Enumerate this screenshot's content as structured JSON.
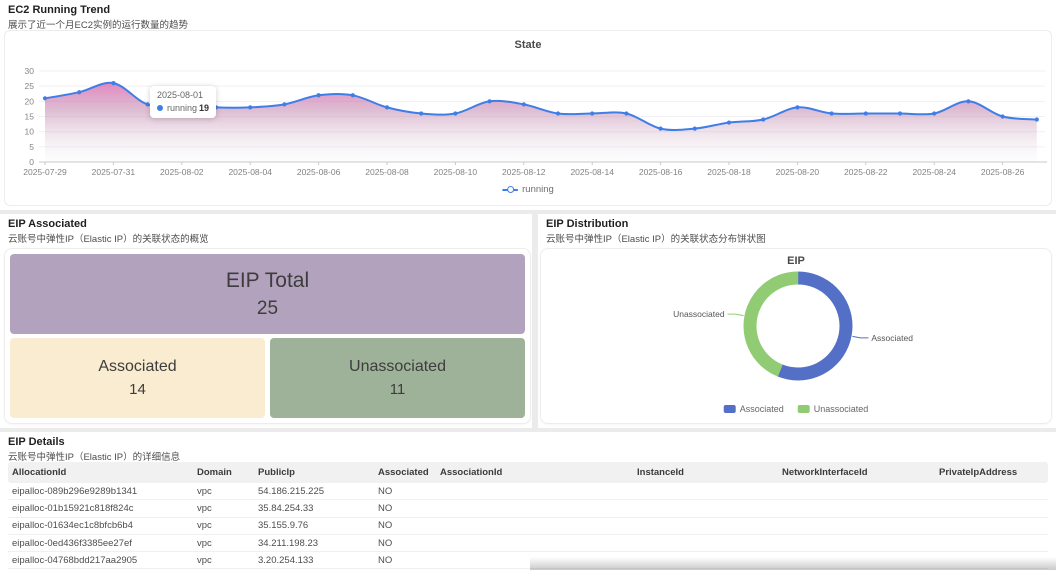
{
  "ec2_section": {
    "title": "EC2 Running Trend",
    "subtitle": "展示了近一个月EC2实例的运行数量的趋势",
    "chart_title": "State",
    "legend": "running",
    "tooltip": {
      "date": "2025-08-01",
      "series": "running",
      "value": "19"
    }
  },
  "eip_associated": {
    "title": "EIP Associated",
    "subtitle": "云账号中弹性IP（Elastic IP）的关联状态的概览",
    "cards": [
      {
        "label": "EIP Total",
        "value": "25",
        "bg": "#b2a2bd"
      },
      {
        "label": "Associated",
        "value": "14",
        "bg": "#faecd0"
      },
      {
        "label": "Unassociated",
        "value": "11",
        "bg": "#9db298"
      }
    ]
  },
  "eip_distribution": {
    "title": "EIP Distribution",
    "subtitle": "云账号中弹性IP（Elastic IP）的关联状态分布饼状图",
    "chart_title": "EIP"
  },
  "eip_details": {
    "title": "EIP Details",
    "subtitle": "云账号中弹性IP（Elastic IP）的详细信息",
    "columns": [
      "AllocationId",
      "Domain",
      "PublicIp",
      "Associated",
      "AssociationId",
      "InstanceId",
      "NetworkInterfaceId",
      "PrivateIpAddress"
    ],
    "rows": [
      [
        "eipalloc-089b296e9289b1341",
        "vpc",
        "54.186.215.225",
        "NO",
        "",
        "",
        "",
        ""
      ],
      [
        "eipalloc-01b15921c818f824c",
        "vpc",
        "35.84.254.33",
        "NO",
        "",
        "",
        "",
        ""
      ],
      [
        "eipalloc-01634ec1c8bfcb6b4",
        "vpc",
        "35.155.9.76",
        "NO",
        "",
        "",
        "",
        ""
      ],
      [
        "eipalloc-0ed436f3385ee27ef",
        "vpc",
        "34.211.198.23",
        "NO",
        "",
        "",
        "",
        ""
      ],
      [
        "eipalloc-04768bdd217aa2905",
        "vpc",
        "3.20.254.133",
        "NO",
        "",
        "",
        "",
        ""
      ]
    ]
  },
  "chart_data": [
    {
      "type": "line",
      "title": "State",
      "x": [
        "2025-07-29",
        "2025-07-30",
        "2025-07-31",
        "2025-08-01",
        "2025-08-02",
        "2025-08-03",
        "2025-08-04",
        "2025-08-05",
        "2025-08-06",
        "2025-08-07",
        "2025-08-08",
        "2025-08-09",
        "2025-08-10",
        "2025-08-11",
        "2025-08-12",
        "2025-08-13",
        "2025-08-14",
        "2025-08-15",
        "2025-08-16",
        "2025-08-17",
        "2025-08-18",
        "2025-08-19",
        "2025-08-20",
        "2025-08-21",
        "2025-08-22",
        "2025-08-23",
        "2025-08-24",
        "2025-08-25",
        "2025-08-26",
        "2025-08-27"
      ],
      "series": [
        {
          "name": "running",
          "color": "#3e7ee6",
          "values": [
            21,
            23,
            26,
            19,
            19,
            18,
            18,
            19,
            22,
            22,
            18,
            16,
            16,
            20,
            19,
            16,
            16,
            16,
            11,
            11,
            13,
            14,
            18,
            16,
            16,
            16,
            16,
            20,
            15,
            14
          ]
        }
      ],
      "ylim": [
        0,
        30
      ],
      "yticks": [
        0,
        5,
        10,
        15,
        20,
        25,
        30
      ],
      "x_label_step": 2,
      "smooth": true,
      "grid": true,
      "legend_position": "bottom",
      "area_gradient": [
        "rgba(231,95,177,0.92)",
        "rgba(196,140,177,0.55)",
        "rgba(238,236,238,0.10)"
      ]
    },
    {
      "type": "pie",
      "title": "EIP",
      "labels": [
        "Associated",
        "Unassociated"
      ],
      "values": [
        14,
        11
      ],
      "colors": [
        "#5470C6",
        "#91CC75"
      ],
      "inner_radius": 0.75,
      "legend_position": "bottom"
    }
  ]
}
